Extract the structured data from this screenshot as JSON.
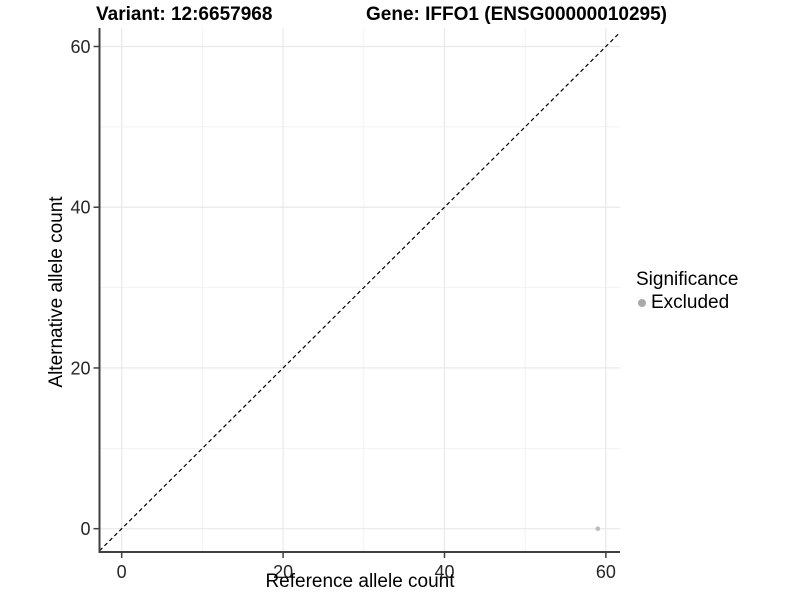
{
  "header": {
    "variant_title": "Variant: 12:6657968",
    "gene_title": "Gene: IFFO1 (ENSG00000010295)"
  },
  "axes": {
    "x_label": "Reference allele count",
    "y_label": "Alternative allele count"
  },
  "legend": {
    "title": "Significance",
    "items": [
      {
        "label": "Excluded",
        "color": "#a9a9a9"
      }
    ]
  },
  "chart_data": {
    "type": "scatter",
    "title": "Variant: 12:6657968   Gene: IFFO1 (ENSG00000010295)",
    "xlabel": "Reference allele count",
    "ylabel": "Alternative allele count",
    "xlim": [
      -2.75,
      61.75
    ],
    "ylim": [
      -2.9,
      62.3
    ],
    "x_ticks": [
      0,
      20,
      40,
      60
    ],
    "y_ticks": [
      0,
      20,
      40,
      60
    ],
    "x_minor_gridlines": [
      10,
      30,
      50
    ],
    "y_minor_gridlines": [
      10,
      30,
      50
    ],
    "grid": true,
    "legend_position": "right",
    "series": [
      {
        "name": "Excluded",
        "color": "#bdbdbd",
        "points": [
          {
            "x": 59,
            "y": 0
          }
        ]
      }
    ],
    "reference_line": {
      "kind": "identity",
      "equation": "y = x",
      "style": "dashed",
      "color": "#000000"
    },
    "style": {
      "axis_line_color": "#404040",
      "tick_color": "#404040",
      "tick_label_color": "#262626",
      "major_grid_color": "#e8e8e8",
      "minor_grid_color": "#f2f2f2",
      "point_radius": 2.3,
      "background": "#ffffff"
    }
  }
}
